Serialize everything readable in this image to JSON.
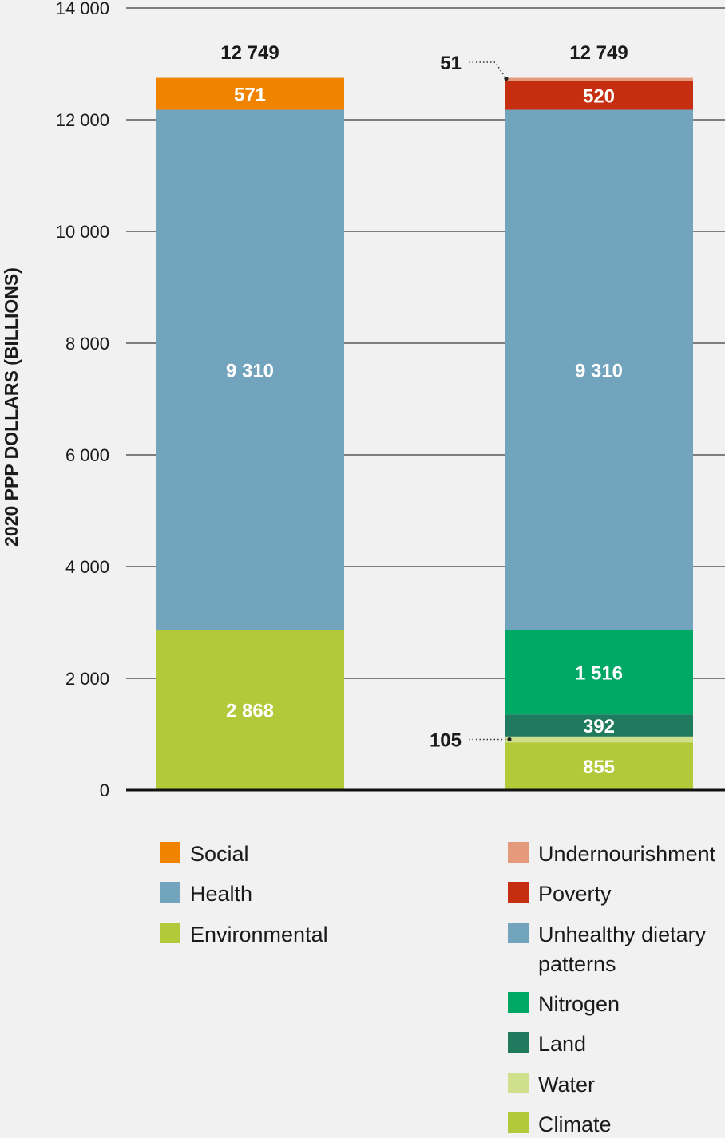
{
  "chart_data": {
    "type": "bar",
    "stacked": true,
    "ylabel": "2020 PPP DOLLARS (BILLIONS)",
    "ylim": [
      0,
      14000
    ],
    "yticks": [
      0,
      2000,
      4000,
      6000,
      8000,
      10000,
      12000,
      14000
    ],
    "ytick_labels": [
      "0",
      "2 000",
      "4 000",
      "6 000",
      "8 000",
      "10 000",
      "12 000",
      "14 000"
    ],
    "grid": true,
    "bars": [
      {
        "total_label": "12 749",
        "segments": [
          {
            "name": "Environmental",
            "value": 2868,
            "label": "2 868",
            "color": "#b2ca3a"
          },
          {
            "name": "Health",
            "value": 9310,
            "label": "9 310",
            "color": "#72a4be"
          },
          {
            "name": "Social",
            "value": 571,
            "label": "571",
            "color": "#f08400"
          }
        ]
      },
      {
        "total_label": "12 749",
        "segments": [
          {
            "name": "Climate",
            "value": 855,
            "label": "855",
            "color": "#b2ca3a"
          },
          {
            "name": "Water",
            "value": 105,
            "label": "105",
            "color": "#cfdf8c",
            "callout": true
          },
          {
            "name": "Land",
            "value": 392,
            "label": "392",
            "color": "#1f7a5e"
          },
          {
            "name": "Nitrogen",
            "value": 1516,
            "label": "1 516",
            "color": "#00a865"
          },
          {
            "name": "Unhealthy dietary patterns",
            "value": 9310,
            "label": "9 310",
            "color": "#72a4be"
          },
          {
            "name": "Poverty",
            "value": 520,
            "label": "520",
            "color": "#c52e10"
          },
          {
            "name": "Undernourishment",
            "value": 51,
            "label": "51",
            "color": "#e59a7c",
            "callout": true
          }
        ]
      }
    ],
    "legend": {
      "left": [
        {
          "label": "Social",
          "color": "#f08400"
        },
        {
          "label": "Health",
          "color": "#72a4be"
        },
        {
          "label": "Environmental",
          "color": "#b2ca3a"
        }
      ],
      "right": [
        {
          "label": "Undernourishment",
          "color": "#e59a7c"
        },
        {
          "label": "Poverty",
          "color": "#c52e10"
        },
        {
          "label": [
            "Unhealthy dietary",
            "patterns"
          ],
          "color": "#72a4be"
        },
        {
          "label": "Nitrogen",
          "color": "#00a865"
        },
        {
          "label": "Land",
          "color": "#1f7a5e"
        },
        {
          "label": "Water",
          "color": "#cfdf8c"
        },
        {
          "label": "Climate",
          "color": "#b2ca3a"
        }
      ]
    }
  }
}
